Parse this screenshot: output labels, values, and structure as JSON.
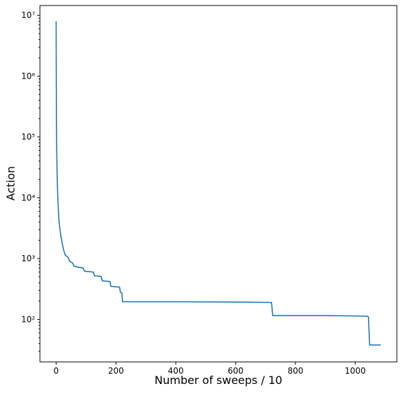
{
  "chart_data": {
    "type": "line",
    "xlabel": "Number of sweeps / 10",
    "ylabel": "Action",
    "x": [
      0,
      0.5,
      1,
      2,
      3,
      5,
      7,
      10,
      15,
      20,
      25,
      30,
      40,
      45,
      55,
      60,
      75,
      90,
      95,
      125,
      128,
      150,
      155,
      180,
      183,
      212,
      215,
      220,
      222,
      400,
      600,
      720,
      724,
      900,
      1040,
      1044,
      1048,
      1085
    ],
    "series": [
      {
        "name": "Action",
        "color": "#1f77b4",
        "values": [
          8000000,
          1000000,
          200000,
          60000,
          30000,
          12000,
          7000,
          4000,
          2500,
          1800,
          1400,
          1150,
          1050,
          900,
          850,
          750,
          720,
          700,
          620,
          600,
          520,
          510,
          430,
          420,
          350,
          340,
          280,
          270,
          195,
          195,
          193,
          190,
          116,
          116,
          113,
          110,
          38,
          38
        ]
      }
    ],
    "xlim": [
      -54,
      1139
    ],
    "xticks": [
      0,
      200,
      400,
      600,
      800,
      1000
    ],
    "ylim": [
      20,
      14500000
    ],
    "log_y": true,
    "yticks": [
      {
        "value": 100,
        "label": "10²"
      },
      {
        "value": 1000,
        "label": "10³"
      },
      {
        "value": 10000,
        "label": "10⁴"
      },
      {
        "value": 100000,
        "label": "10⁵"
      },
      {
        "value": 1000000,
        "label": "10⁶"
      },
      {
        "value": 10000000,
        "label": "10⁷"
      }
    ],
    "yminorticks": [
      30,
      40,
      50,
      60,
      70,
      80,
      90,
      200,
      300,
      400,
      500,
      600,
      700,
      800,
      900,
      2000,
      3000,
      4000,
      5000,
      6000,
      7000,
      8000,
      9000,
      20000,
      30000,
      40000,
      50000,
      60000,
      70000,
      80000,
      90000,
      200000,
      300000,
      400000,
      500000,
      600000,
      700000,
      800000,
      900000,
      2000000,
      3000000,
      4000000,
      5000000,
      6000000,
      7000000,
      8000000,
      9000000
    ]
  }
}
